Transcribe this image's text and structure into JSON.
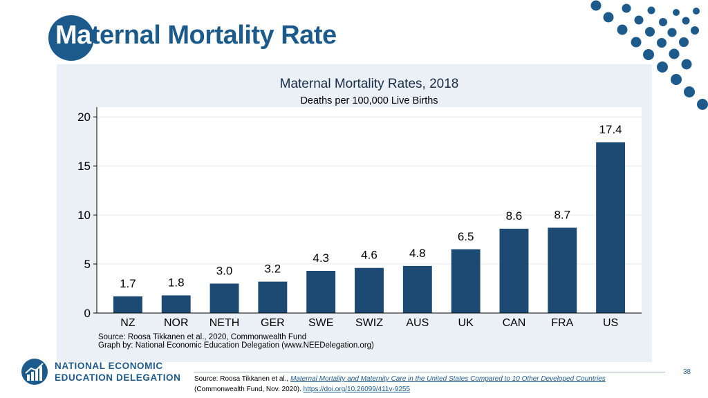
{
  "slide": {
    "title_lead": "Ma",
    "title_rest": "ternal Mortality Rate",
    "page_number": "38"
  },
  "logo": {
    "line1": "NATIONAL ECONOMIC",
    "line2": "EDUCATION DELEGATION"
  },
  "footer": {
    "prefix": "Source: Roosa Tikkanen et al., ",
    "title": "Maternal Mortality and Maternity Care in the United States Compared to 10 Other Developed Countries",
    "suffix": "(Commonwealth Fund, Nov. 2020). ",
    "link": "https://doi.org/10.26099/411v-9255"
  },
  "colors": {
    "brand": "#1d5a8c",
    "bar": "#1c4a73",
    "panel": "#eaf0f5"
  },
  "chart_data": {
    "type": "bar",
    "title": "Maternal Mortality Rates, 2018",
    "subtitle": "Deaths per 100,000 Live Births",
    "categories": [
      "NZ",
      "NOR",
      "NETH",
      "GER",
      "SWE",
      "SWIZ",
      "AUS",
      "UK",
      "CAN",
      "FRA",
      "US"
    ],
    "values": [
      1.7,
      1.8,
      3.0,
      3.2,
      4.3,
      4.6,
      4.8,
      6.5,
      8.6,
      8.7,
      17.4
    ],
    "labels": [
      "1.7",
      "1.8",
      "3.0",
      "3.2",
      "4.3",
      "4.6",
      "4.8",
      "6.5",
      "8.6",
      "8.7",
      "17.4"
    ],
    "yticks": [
      0,
      5,
      10,
      15,
      20
    ],
    "ylim": [
      0,
      21
    ],
    "xlabel": "",
    "ylabel": "",
    "grid": true,
    "notes": [
      "Source: Roosa Tikkanen et al., 2020, Commonwealth Fund",
      "Graph by: National Economic Education Delegation (www.NEEDelegation.org)"
    ]
  }
}
